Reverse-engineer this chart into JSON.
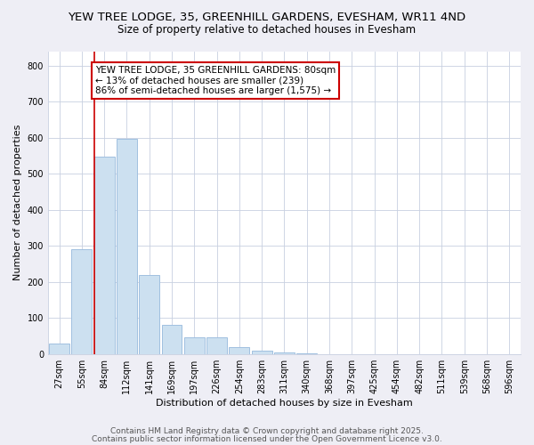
{
  "title_line1": "YEW TREE LODGE, 35, GREENHILL GARDENS, EVESHAM, WR11 4ND",
  "title_line2": "Size of property relative to detached houses in Evesham",
  "xlabel": "Distribution of detached houses by size in Evesham",
  "ylabel": "Number of detached properties",
  "categories": [
    "27sqm",
    "55sqm",
    "84sqm",
    "112sqm",
    "141sqm",
    "169sqm",
    "197sqm",
    "226sqm",
    "254sqm",
    "283sqm",
    "311sqm",
    "340sqm",
    "368sqm",
    "397sqm",
    "425sqm",
    "454sqm",
    "482sqm",
    "511sqm",
    "539sqm",
    "568sqm",
    "596sqm"
  ],
  "values": [
    30,
    290,
    547,
    598,
    220,
    80,
    45,
    45,
    20,
    8,
    3,
    1,
    0,
    0,
    0,
    0,
    0,
    0,
    0,
    0,
    0
  ],
  "bar_color": "#cce0f0",
  "bar_edge_color": "#a0c0e0",
  "highlight_index": 2,
  "highlight_line_color": "#cc0000",
  "annotation_text": "YEW TREE LODGE, 35 GREENHILL GARDENS: 80sqm\n← 13% of detached houses are smaller (239)\n86% of semi-detached houses are larger (1,575) →",
  "annotation_box_color": "white",
  "annotation_box_edge_color": "#cc0000",
  "ylim": [
    0,
    840
  ],
  "yticks": [
    0,
    100,
    200,
    300,
    400,
    500,
    600,
    700,
    800
  ],
  "footer_line1": "Contains HM Land Registry data © Crown copyright and database right 2025.",
  "footer_line2": "Contains public sector information licensed under the Open Government Licence v3.0.",
  "bg_color": "#eeeef5",
  "plot_bg_color": "#ffffff",
  "grid_color": "#c8d0e0",
  "title_fontsize": 9.5,
  "subtitle_fontsize": 8.5,
  "axis_label_fontsize": 8,
  "tick_fontsize": 7,
  "footer_fontsize": 6.5,
  "annotation_fontsize": 7.5
}
